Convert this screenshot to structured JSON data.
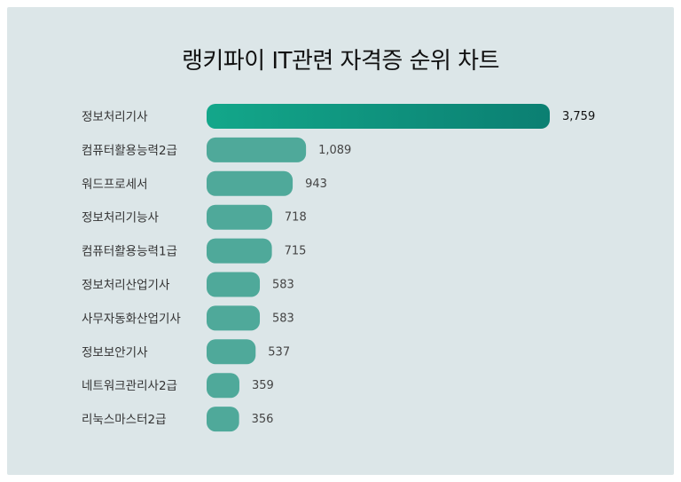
{
  "chart_data": {
    "type": "bar",
    "orientation": "horizontal",
    "title": "랭키파이 IT관련 자격증 순위 차트",
    "categories": [
      "정보처리기사",
      "컴퓨터활용능력2급",
      "워드프로세서",
      "정보처리기능사",
      "컴퓨터활용능력1급",
      "정보처리산업기사",
      "사무자동화산업기사",
      "정보보안기사",
      "네트워크관리사2급",
      "리눅스마스터2급"
    ],
    "values": [
      3759,
      1089,
      943,
      718,
      715,
      583,
      583,
      537,
      359,
      356
    ],
    "value_labels": [
      "3,759",
      "1,089",
      "943",
      "718",
      "715",
      "583",
      "583",
      "537",
      "359",
      "356"
    ],
    "xlim": [
      0,
      3759
    ],
    "grid": false,
    "legend": "none",
    "colors": {
      "top_bar_start": "#13a78a",
      "top_bar_end": "#0b7f72",
      "bar": "#4fa99a",
      "background": "#dce6e8"
    }
  }
}
